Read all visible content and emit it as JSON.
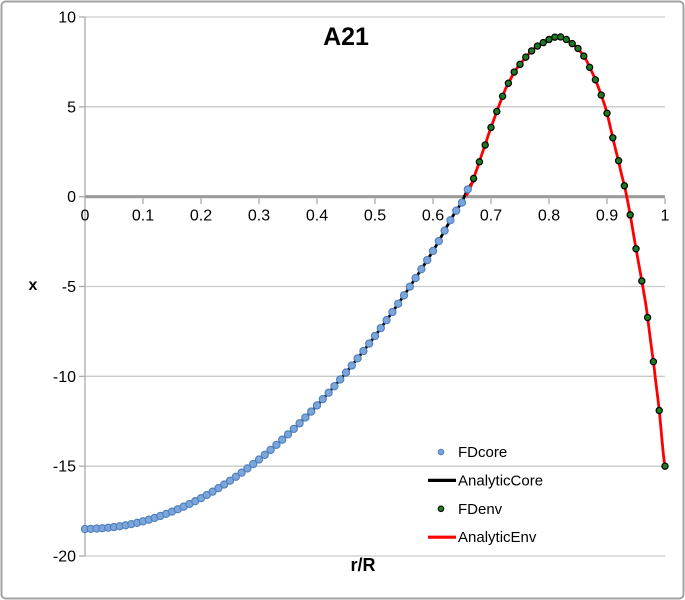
{
  "window": {
    "background": "#FFFFFF",
    "border_color": "#A3A3A3"
  },
  "chart_data": {
    "type": "scatter",
    "title": "A21",
    "xlabel": "r/R",
    "ylabel": "x",
    "xlim": [
      0,
      1
    ],
    "ylim": [
      -20,
      10
    ],
    "xticks": [
      0,
      0.1,
      0.2,
      0.3,
      0.4,
      0.5,
      0.6,
      0.7,
      0.8,
      0.9,
      1
    ],
    "yticks": [
      10,
      5,
      0,
      -5,
      -10,
      -15,
      -20
    ],
    "grid": true,
    "gridline_color": "#C9C9C9",
    "zero_axis_color": "#9B9B9B",
    "axis_line_color": "#ABABAB",
    "branches": {
      "core": {
        "knots": [
          [
            0.0,
            -18.5
          ],
          [
            0.05,
            -18.39
          ],
          [
            0.1,
            -18.07
          ],
          [
            0.15,
            -17.53
          ],
          [
            0.2,
            -16.78
          ],
          [
            0.25,
            -15.81
          ],
          [
            0.3,
            -14.63
          ],
          [
            0.35,
            -13.23
          ],
          [
            0.4,
            -11.62
          ],
          [
            0.45,
            -9.79
          ],
          [
            0.5,
            -7.75
          ],
          [
            0.55,
            -5.49
          ],
          [
            0.6,
            -3.02
          ],
          [
            0.65,
            -0.33
          ],
          [
            0.672,
            0.92
          ]
        ]
      },
      "env": {
        "knots": [
          [
            0.658,
            0.1
          ],
          [
            0.673,
            1.3
          ],
          [
            0.691,
            2.95
          ],
          [
            0.701,
            3.95
          ],
          [
            0.713,
            5.0
          ],
          [
            0.725,
            6.0
          ],
          [
            0.741,
            7.0
          ],
          [
            0.767,
            8.0
          ],
          [
            0.785,
            8.5
          ],
          [
            0.818,
            8.9
          ],
          [
            0.85,
            8.25
          ],
          [
            0.87,
            7.2
          ],
          [
            0.897,
            5.0
          ],
          [
            0.92,
            2.0
          ],
          [
            0.934,
            0.0
          ],
          [
            0.95,
            -2.9
          ],
          [
            0.967,
            -6.0
          ],
          [
            0.981,
            -9.4
          ],
          [
            0.99,
            -11.9
          ],
          [
            1.0,
            -15.0
          ]
        ]
      }
    },
    "series": [
      {
        "name": "FDcore",
        "type": "scatter",
        "branch": "core",
        "r_start": 0,
        "r_end": 0.66,
        "r_step": 0.01,
        "marker": {
          "shape": "circle",
          "radius": 3.6,
          "fill": "#7CA5DC",
          "stroke": "#4E7FBA",
          "stroke_width": 1.1
        }
      },
      {
        "name": "AnalyticCore",
        "type": "line",
        "branch": "core",
        "r_start": 0,
        "r_end": 0.672,
        "color": "#000000",
        "width": 2.8
      },
      {
        "name": "FDenv",
        "type": "scatter",
        "branch": "env",
        "r_start": 0.67,
        "r_end": 1.0,
        "r_step": 0.01,
        "marker": {
          "shape": "circle",
          "radius": 3.1,
          "fill": "#1E7B1E",
          "stroke": "#000000",
          "stroke_width": 1.2
        }
      },
      {
        "name": "AnalyticEnv",
        "type": "line",
        "branch": "env",
        "r_start": 0.658,
        "r_end": 1.0,
        "color": "#FF0000",
        "width": 2.8
      }
    ],
    "legend": {
      "position": "inside-bottom-right",
      "entries": [
        {
          "label": "FDcore",
          "series": "FDcore"
        },
        {
          "label": "AnalyticCore",
          "series": "AnalyticCore"
        },
        {
          "label": "FDenv",
          "series": "FDenv"
        },
        {
          "label": "AnalyticEnv",
          "series": "AnalyticEnv"
        }
      ]
    }
  }
}
